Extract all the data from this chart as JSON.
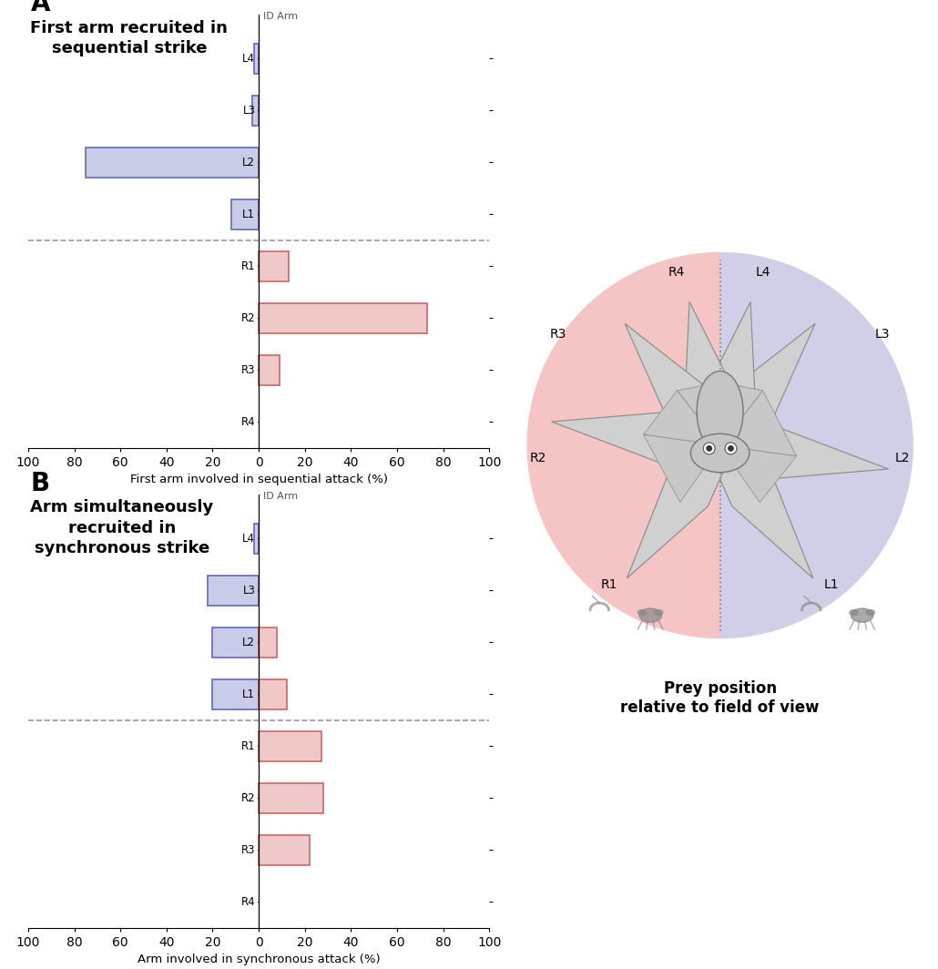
{
  "panel_A_title": "First arm recruited in\nsequential strike",
  "panel_A_xlabel": "First arm involved in sequential attack (%)",
  "panel_A_labels": [
    "L4",
    "L3",
    "L2",
    "L1",
    "R1",
    "R2",
    "R3",
    "R4"
  ],
  "panel_A_left_vals": [
    2,
    3,
    75,
    12,
    0,
    0,
    0,
    0
  ],
  "panel_A_right_vals": [
    0,
    0,
    0,
    0,
    13,
    73,
    9,
    0
  ],
  "panel_A_left_color_fill": "#c8cce8",
  "panel_A_left_color_edge": "#6666bb",
  "panel_A_right_color_fill": "#f0c8c8",
  "panel_A_right_color_edge": "#cc6666",
  "panel_B_title": "Arm simultaneously\nrecruited in\nsynchronous strike",
  "panel_B_xlabel": "Arm involved in synchronous attack (%)",
  "panel_B_labels": [
    "L4",
    "L3",
    "L2",
    "L1",
    "R1",
    "R2",
    "R3",
    "R4"
  ],
  "panel_B_left_vals": [
    2,
    22,
    20,
    20,
    0,
    0,
    0,
    0
  ],
  "panel_B_right_vals": [
    0,
    0,
    8,
    12,
    27,
    28,
    22,
    0
  ],
  "panel_B_left_color_fill": "#c8cce8",
  "panel_B_left_color_edge": "#6666bb",
  "panel_B_right_color_fill": "#f0c8c8",
  "panel_B_right_color_edge": "#cc6666",
  "xlim": 100,
  "id_arm_label": "ID Arm",
  "prey_label": "Prey position\nrelative to field of view",
  "background_color": "#ffffff",
  "dashed_line_color": "#999999",
  "axis_label_fontsize": 9.5,
  "tick_fontsize": 8.5,
  "title_fontsize": 13,
  "panel_label_fontsize": 20,
  "left_bg_color": "#f5c5c5",
  "right_bg_color": "#cfd0e8",
  "octopus_body_color": "#c5c5c5",
  "octopus_edge_color": "#777777",
  "arm_color": "#bbbbbb",
  "arm_edge_color": "#888888"
}
